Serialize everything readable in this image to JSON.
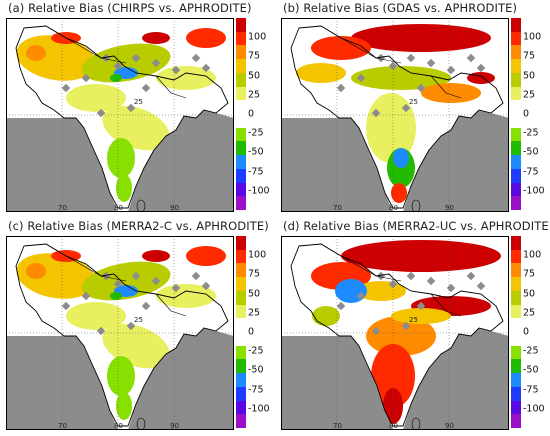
{
  "panels": [
    {
      "id": "a",
      "title": "(a) Relative Bias (CHIRPS vs. APHRODITE)",
      "intensity": "low"
    },
    {
      "id": "b",
      "title": "(b) Relative Bias (GDAS vs. APHRODITE)",
      "intensity": "high-north"
    },
    {
      "id": "c",
      "title": "(c) Relative Bias (MERRA2-C vs. APHRODITE)",
      "intensity": "low"
    },
    {
      "id": "d",
      "title": "(d) Relative Bias (MERRA2-UC vs. APHRODITE)",
      "intensity": "high"
    }
  ],
  "map_labels": {
    "lat_25": "25",
    "lon_70": "70",
    "lon_80": "80",
    "lon_90": "90"
  },
  "colorbar": {
    "ticks": [
      "100",
      "75",
      "50",
      "25",
      "0",
      "-25",
      "-50",
      "-75",
      "-100"
    ],
    "colors": [
      "#cc0000",
      "#ff2a00",
      "#ff8c00",
      "#f5c400",
      "#b8cc00",
      "#e8f060",
      "#ffffff",
      "#ffffff",
      "#88e000",
      "#22bb00",
      "#1e8cff",
      "#1e3cff",
      "#5a0ae0",
      "#9a10c8"
    ]
  },
  "colors": {
    "land_mask": "#8c8c8c",
    "border": "#000000"
  }
}
